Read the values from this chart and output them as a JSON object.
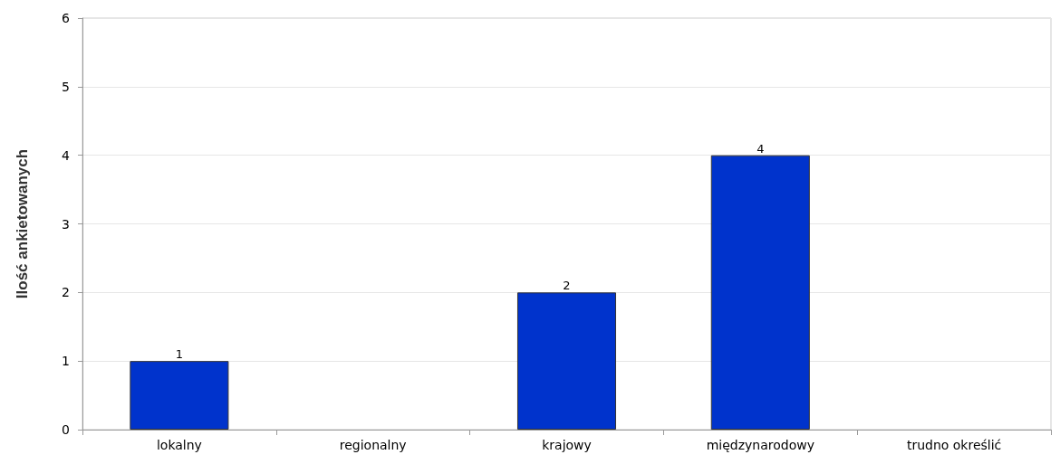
{
  "chart_data": {
    "type": "bar",
    "ylabel": "Ilość ankietowanych",
    "categories": [
      "lokalny",
      "regionalny",
      "krajowy",
      "międzynarodowy",
      "trudno określić"
    ],
    "values": [
      1,
      0,
      2,
      4,
      0
    ],
    "color": "#0033cc",
    "value_labels": [
      "1",
      null,
      "2",
      "4",
      null
    ],
    "ylim": [
      0,
      6
    ],
    "yticks": [
      0,
      1,
      2,
      3,
      4,
      5,
      6
    ],
    "grid": "y"
  }
}
